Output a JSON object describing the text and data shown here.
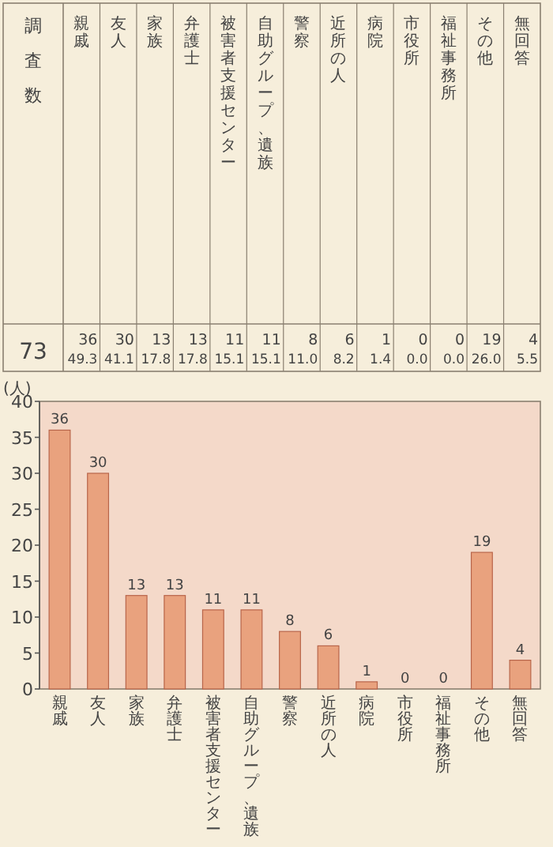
{
  "chart_data": [
    {
      "type": "other",
      "ylabel": "調査数",
      "categories": [
        "親戚",
        "友人",
        "家族",
        "弁護士",
        "被害者支援センター",
        "自助グループ、遺族",
        "警察",
        "近所の人",
        "病院",
        "市役所",
        "福祉事務所",
        "その他",
        "無回答"
      ],
      "annotations": [
        "73",
        "36",
        "30",
        "13",
        "13",
        "11",
        "11",
        "8",
        "6",
        "1",
        "0",
        "0",
        "19",
        "4",
        "49.3",
        "41.1",
        "17.8",
        "17.8",
        "15.1",
        "15.1",
        "11.0",
        "8.2",
        "1.4",
        "0.0",
        "0.0",
        "26.0",
        "5.5"
      ]
    },
    {
      "type": "bar",
      "ylabel": "(人)",
      "categories": [
        "親戚",
        "友人",
        "家族",
        "弁護士",
        "被害者支援センター",
        "自助グループ、遺族",
        "警察",
        "近所の人",
        "病院",
        "市役所",
        "福祉事務所",
        "その他",
        "無回答"
      ],
      "values": [
        36,
        30,
        13,
        13,
        11,
        11,
        8,
        6,
        1,
        0,
        0,
        19,
        4
      ],
      "color": "#e9a27e",
      "ylim": [
        0,
        40
      ],
      "yticks": [
        0,
        5,
        10,
        15,
        20,
        25,
        30,
        35,
        40
      ],
      "data_labels": true
    }
  ]
}
